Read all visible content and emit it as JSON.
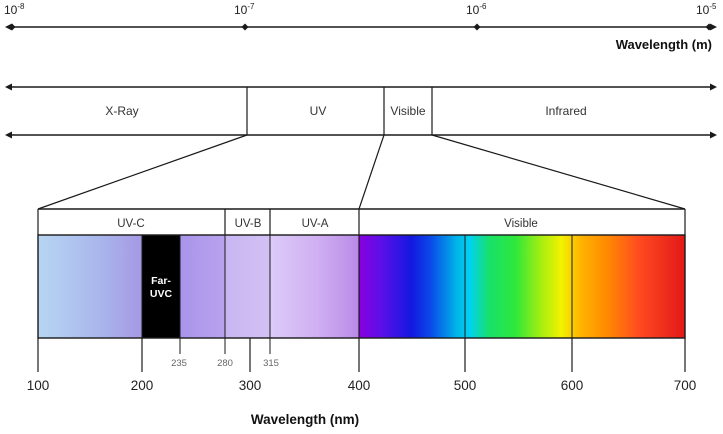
{
  "top_axis": {
    "ticks": [
      {
        "base": "10",
        "exp": "-8"
      },
      {
        "base": "10",
        "exp": "-7"
      },
      {
        "base": "10",
        "exp": "-6"
      },
      {
        "base": "10",
        "exp": "-5"
      }
    ],
    "label": "Wavelength (m)"
  },
  "regions": {
    "xray": "X-Ray",
    "uv": "UV",
    "visible": "Visible",
    "infrared": "Infrared"
  },
  "bands": {
    "uvc": "UV-C",
    "uvb": "UV-B",
    "uva": "UV-A",
    "visible": "Visible",
    "far_uvc_line1": "Far-",
    "far_uvc_line2": "UVC"
  },
  "bottom_axis": {
    "major_ticks": [
      100,
      200,
      300,
      400,
      500,
      600,
      700
    ],
    "minor_ticks": [
      235,
      280,
      315
    ],
    "label": "Wavelength (nm)"
  },
  "colors": {
    "line": "#1a1a1a",
    "far_uvc": "#000000",
    "uv_c_start": "#b3d1f0",
    "uv_c_end": "#a79ae6",
    "uv_b": "#c4b0ef",
    "uv_a_start": "#d6c6f6",
    "uv_a_end": "#c39aed"
  }
}
